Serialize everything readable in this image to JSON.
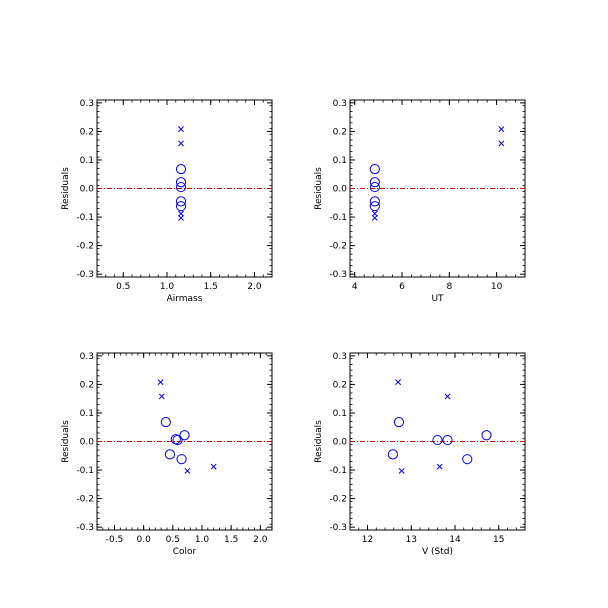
{
  "colors": {
    "axis": "#000000",
    "marker": "#0000ff",
    "zero_line": "#cc0000",
    "background": "#ffffff"
  },
  "chart_data": [
    {
      "type": "scatter",
      "title": "",
      "xlabel": "Airmass",
      "ylabel": "Residuals",
      "xlim": [
        0.2,
        2.2
      ],
      "ylim": [
        -0.31,
        0.31
      ],
      "xticks": [
        0.5,
        1.0,
        1.5,
        2.0
      ],
      "xtick_labels": [
        "0.5",
        "1.0",
        "1.5",
        "2.0"
      ],
      "yticks": [
        -0.3,
        -0.2,
        -0.1,
        0.0,
        0.1,
        0.2,
        0.3
      ],
      "ytick_labels": [
        "-0.3",
        "-0.2",
        "-0.1",
        "0.0",
        "0.1",
        "0.2",
        "0.3"
      ],
      "zero_line": 0.0,
      "series": [
        {
          "marker": "o",
          "points": [
            [
              1.16,
              0.068
            ],
            [
              1.16,
              0.022
            ],
            [
              1.16,
              0.005
            ],
            [
              1.16,
              -0.045
            ],
            [
              1.16,
              -0.062
            ]
          ]
        },
        {
          "marker": "x",
          "points": [
            [
              1.16,
              0.208
            ],
            [
              1.16,
              0.158
            ],
            [
              1.16,
              -0.088
            ],
            [
              1.16,
              -0.103
            ]
          ]
        }
      ]
    },
    {
      "type": "scatter",
      "title": "",
      "xlabel": "UT",
      "ylabel": "Residuals",
      "xlim": [
        3.8,
        11.2
      ],
      "ylim": [
        -0.31,
        0.31
      ],
      "xticks": [
        4,
        6,
        8,
        10
      ],
      "xtick_labels": [
        "4",
        "6",
        "8",
        "10"
      ],
      "yticks": [
        -0.3,
        -0.2,
        -0.1,
        0.0,
        0.1,
        0.2,
        0.3
      ],
      "ytick_labels": [
        "-0.3",
        "-0.2",
        "-0.1",
        "0.0",
        "0.1",
        "0.2",
        "0.3"
      ],
      "zero_line": 0.0,
      "series": [
        {
          "marker": "o",
          "points": [
            [
              4.85,
              0.068
            ],
            [
              4.85,
              0.022
            ],
            [
              4.85,
              0.005
            ],
            [
              4.85,
              -0.045
            ],
            [
              4.85,
              -0.062
            ]
          ]
        },
        {
          "marker": "x",
          "points": [
            [
              10.2,
              0.208
            ],
            [
              10.2,
              0.158
            ],
            [
              4.85,
              -0.088
            ],
            [
              4.85,
              -0.103
            ]
          ]
        }
      ]
    },
    {
      "type": "scatter",
      "title": "",
      "xlabel": "Color",
      "ylabel": "Residuals",
      "xlim": [
        -0.8,
        2.2
      ],
      "ylim": [
        -0.31,
        0.31
      ],
      "xticks": [
        -0.5,
        0.0,
        0.5,
        1.0,
        1.5,
        2.0
      ],
      "xtick_labels": [
        "-0.5",
        "0.0",
        "0.5",
        "1.0",
        "1.5",
        "2.0"
      ],
      "yticks": [
        -0.3,
        -0.2,
        -0.1,
        0.0,
        0.1,
        0.2,
        0.3
      ],
      "ytick_labels": [
        "-0.3",
        "-0.2",
        "-0.1",
        "0.0",
        "0.1",
        "0.2",
        "0.3"
      ],
      "zero_line": 0.0,
      "series": [
        {
          "marker": "o",
          "points": [
            [
              0.38,
              0.068
            ],
            [
              0.45,
              -0.045
            ],
            [
              0.55,
              0.008
            ],
            [
              0.58,
              0.005
            ],
            [
              0.65,
              -0.062
            ],
            [
              0.7,
              0.022
            ]
          ]
        },
        {
          "marker": "x",
          "points": [
            [
              0.29,
              0.208
            ],
            [
              0.31,
              0.158
            ],
            [
              0.75,
              -0.103
            ],
            [
              1.2,
              -0.088
            ]
          ]
        }
      ]
    },
    {
      "type": "scatter",
      "title": "",
      "xlabel": "V (Std)",
      "ylabel": "Residuals",
      "xlim": [
        11.6,
        15.6
      ],
      "ylim": [
        -0.31,
        0.31
      ],
      "xticks": [
        12,
        13,
        14,
        15
      ],
      "xtick_labels": [
        "12",
        "13",
        "14",
        "15"
      ],
      "yticks": [
        -0.3,
        -0.2,
        -0.1,
        0.0,
        0.1,
        0.2,
        0.3
      ],
      "ytick_labels": [
        "-0.3",
        "-0.2",
        "-0.1",
        "0.0",
        "0.1",
        "0.2",
        "0.3"
      ],
      "zero_line": 0.0,
      "series": [
        {
          "marker": "o",
          "points": [
            [
              12.58,
              -0.045
            ],
            [
              12.72,
              0.068
            ],
            [
              13.6,
              0.005
            ],
            [
              13.83,
              0.005
            ],
            [
              14.28,
              -0.062
            ],
            [
              14.72,
              0.022
            ]
          ]
        },
        {
          "marker": "x",
          "points": [
            [
              12.7,
              0.208
            ],
            [
              12.78,
              -0.103
            ],
            [
              13.65,
              -0.088
            ],
            [
              13.83,
              0.158
            ]
          ]
        }
      ]
    }
  ]
}
